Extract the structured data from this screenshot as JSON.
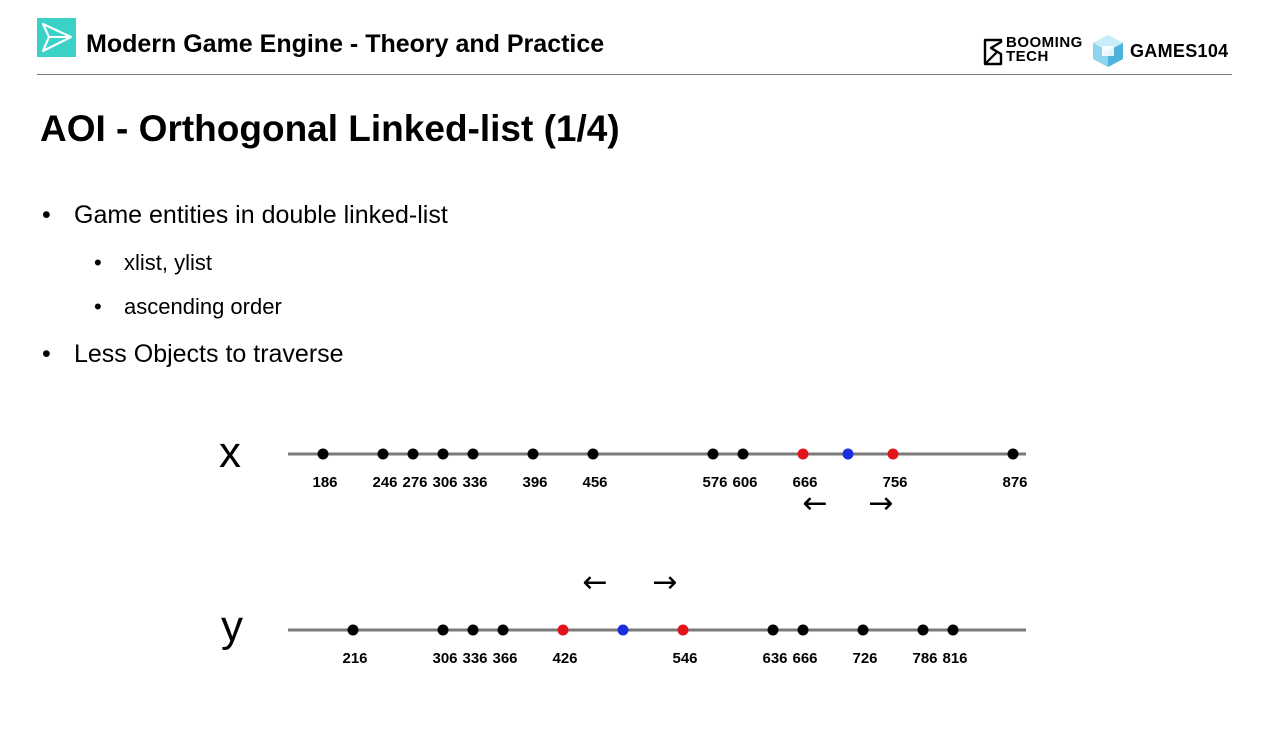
{
  "header": {
    "course_title": "Modern Game Engine - Theory and Practice",
    "booming_line1": "BOOMING",
    "booming_line2": "TECH",
    "games_label": "GAMES104"
  },
  "slide": {
    "title": "AOI - Orthogonal Linked-list (1/4)",
    "bullets": [
      {
        "level": 1,
        "text": "Game entities in double linked-list"
      },
      {
        "level": 2,
        "text": "xlist, ylist"
      },
      {
        "level": 2,
        "text": "ascending order"
      },
      {
        "level": 1,
        "text": "Less Objects to traverse"
      }
    ],
    "bullet_symbol": "•"
  },
  "colors": {
    "accent_teal": "#3ad1c7",
    "entity": "#000000",
    "boundary": "#e0141a",
    "center": "#1a2ee0",
    "axis": "#7a7a7a"
  },
  "chart_data": [
    {
      "type": "scatter",
      "axis_name": "x",
      "xlim": [
        140,
        915
      ],
      "entities": [
        186,
        246,
        276,
        306,
        336,
        396,
        456,
        576,
        606,
        876
      ],
      "boundaries": [
        666,
        756
      ],
      "center": 711,
      "labels": [
        "186",
        "246",
        "276",
        "306",
        "336",
        "396",
        "456",
        "576",
        "606",
        "666",
        "756",
        "876"
      ],
      "arrows": [
        "←",
        "→"
      ]
    },
    {
      "type": "scatter",
      "axis_name": "y",
      "xlim": [
        140,
        915
      ],
      "entities": [
        216,
        306,
        336,
        366,
        636,
        666,
        726,
        786,
        816
      ],
      "boundaries": [
        426,
        546
      ],
      "center": 486,
      "labels": [
        "216",
        "306",
        "336",
        "366",
        "426",
        "546",
        "636",
        "666",
        "726",
        "786",
        "816"
      ],
      "arrows": [
        "←",
        "→"
      ]
    }
  ]
}
